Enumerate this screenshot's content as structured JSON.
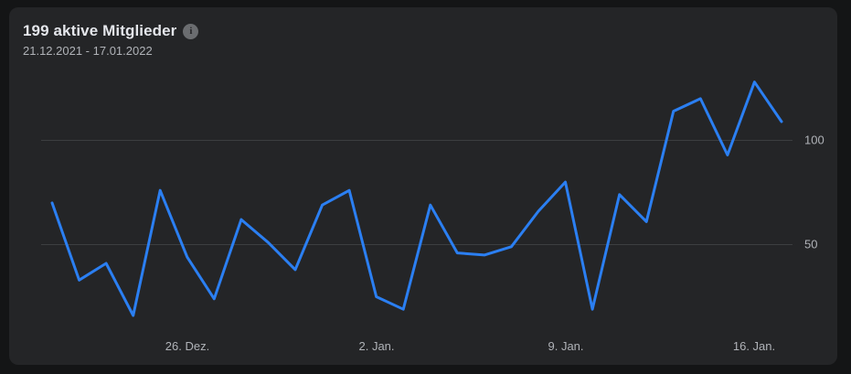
{
  "header": {
    "title": "199 aktive Mitglieder",
    "date_range": "21.12.2021 - 17.01.2022",
    "info_icon_glyph": "i"
  },
  "colors": {
    "background": "#141516",
    "card": "#242527",
    "title_text": "#e4e6eb",
    "secondary_text": "#b0b3b8",
    "line": "#2b7ff2",
    "grid": "#3c3e40",
    "info_icon_bg": "#6b6d70"
  },
  "chart_data": {
    "type": "line",
    "title": "199 aktive Mitglieder",
    "date_range": "21.12.2021 - 17.01.2022",
    "x": [
      "21.12.2021",
      "22.12.2021",
      "23.12.2021",
      "24.12.2021",
      "25.12.2021",
      "26.12.2021",
      "27.12.2021",
      "28.12.2021",
      "29.12.2021",
      "30.12.2021",
      "31.12.2021",
      "01.01.2022",
      "02.01.2022",
      "03.01.2022",
      "04.01.2022",
      "05.01.2022",
      "06.01.2022",
      "07.01.2022",
      "08.01.2022",
      "09.01.2022",
      "10.01.2022",
      "11.01.2022",
      "12.01.2022",
      "13.01.2022",
      "14.01.2022",
      "15.01.2022",
      "16.01.2022",
      "17.01.2022"
    ],
    "values": [
      70,
      33,
      41,
      16,
      76,
      44,
      24,
      62,
      51,
      38,
      69,
      76,
      25,
      19,
      69,
      46,
      45,
      49,
      66,
      80,
      19,
      74,
      61,
      114,
      120,
      93,
      128,
      109
    ],
    "series_name": "aktive Mitglieder",
    "x_tick_labels": [
      "26. Dez.",
      "2. Jan.",
      "9. Jan.",
      "16. Jan."
    ],
    "x_tick_indices": [
      5,
      12,
      19,
      26
    ],
    "y_tick_labels": [
      "100",
      "50"
    ],
    "y_gridlines": [
      100,
      50
    ],
    "ylim": [
      0,
      140
    ],
    "grid": "horizontal",
    "legend": "none",
    "line_color": "#2b7ff2",
    "grid_color": "#3c3e40"
  }
}
